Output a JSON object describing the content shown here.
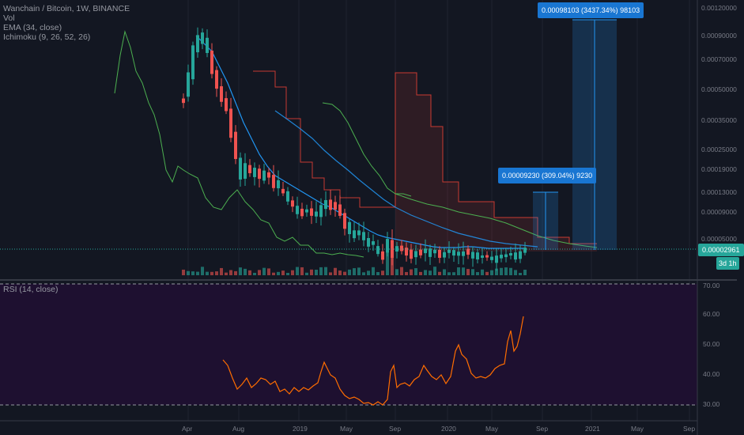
{
  "legend": {
    "symbol": "Wanchain / Bitcoin, 1W, BINANCE",
    "vol": "Vol",
    "ema": "EMA (34, close)",
    "ichimoku": "Ichimoku (9, 26, 52, 26)"
  },
  "rsi_legend": "RSI (14, close)",
  "price_axis": [
    "0.00120000",
    "0.00090000",
    "0.00070000",
    "0.00050000",
    "0.00035000",
    "0.00025000",
    "0.00019000",
    "0.00013000",
    "0.00009000",
    "0.00005000"
  ],
  "rsi_axis": [
    "70.00",
    "60.00",
    "50.00",
    "40.00",
    "30.00"
  ],
  "time_axis": [
    "Apr",
    "Aug",
    "2019",
    "May",
    "Sep",
    "2020",
    "May",
    "Sep",
    "2021",
    "May",
    "Sep"
  ],
  "current_price": "0.00002961",
  "countdown": "3d 1h",
  "target1": "0.00009230 (309.04%) 9230",
  "target2": "0.00098103 (3437.34%) 98103",
  "colors": {
    "background": "#131722",
    "up": "#26a69a",
    "down": "#ef5350",
    "ema": "#2196f3",
    "ichimoku_green": "#4caf50",
    "ichimoku_red": "#f44336",
    "rsi_line": "#ff6d00",
    "rsi_band": "#2a0f3a",
    "badge": "#1976d2"
  },
  "chart_data": {
    "type": "candlestick",
    "series": [
      {
        "name": "EMA (34, close)"
      },
      {
        "name": "Ichimoku (9, 26, 52, 26)"
      },
      {
        "name": "RSI (14, close)"
      }
    ]
  }
}
